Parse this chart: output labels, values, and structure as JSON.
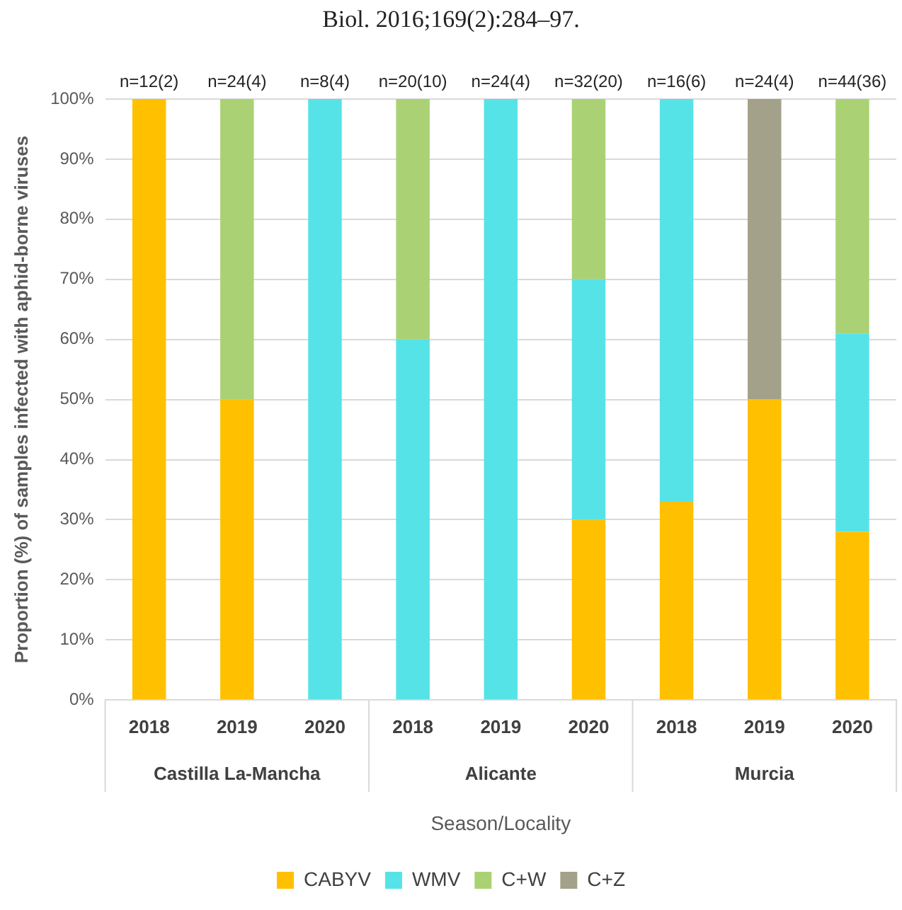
{
  "chart_data": {
    "type": "bar",
    "stacked": true,
    "ylabel": "Proportion (%) of samples infected with aphid-borne viruses",
    "xlabel": "Season/Locality",
    "categories": [
      "2018",
      "2019",
      "2020",
      "2018",
      "2019",
      "2020",
      "2018",
      "2019",
      "2020"
    ],
    "series": [
      {
        "name": "CABYV",
        "color": "#ffc000",
        "values": [
          100,
          50,
          0,
          0,
          0,
          30,
          33,
          50,
          28
        ]
      },
      {
        "name": "WMV",
        "color": "#55e3e8",
        "values": [
          0,
          0,
          100,
          60,
          100,
          40,
          67,
          0,
          33
        ]
      },
      {
        "name": "C+W",
        "color": "#aad274",
        "values": [
          0,
          50,
          0,
          40,
          0,
          30,
          0,
          0,
          39
        ]
      },
      {
        "name": "C+Z",
        "color": "#a3a189",
        "values": [
          0,
          0,
          0,
          0,
          0,
          0,
          0,
          50,
          0
        ]
      }
    ],
    "totals": [
      "n=12(2)",
      "n=24(4)",
      "n=8(4)",
      "n=20(10)",
      "n=24(4)",
      "n=32(20)",
      "n=16(6)",
      "n=24(4)",
      "n=44(36)"
    ],
    "annotations": [
      "Biol. 2016;169(2):284–97.",
      "Castilla La-Mancha",
      "Alicante",
      "Murcia"
    ],
    "ylim": [
      0,
      100
    ],
    "yticks": [
      {
        "value": 0,
        "label": "0%"
      },
      {
        "value": 10,
        "label": "10%"
      },
      {
        "value": 20,
        "label": "20%"
      },
      {
        "value": 30,
        "label": "30%"
      },
      {
        "value": 40,
        "label": "40%"
      },
      {
        "value": 50,
        "label": "50%"
      },
      {
        "value": 60,
        "label": "60%"
      },
      {
        "value": 70,
        "label": "70%"
      },
      {
        "value": 80,
        "label": "80%"
      },
      {
        "value": 90,
        "label": "90%"
      },
      {
        "value": 100,
        "label": "100%"
      }
    ],
    "grid": "y",
    "legend": "bottom"
  }
}
